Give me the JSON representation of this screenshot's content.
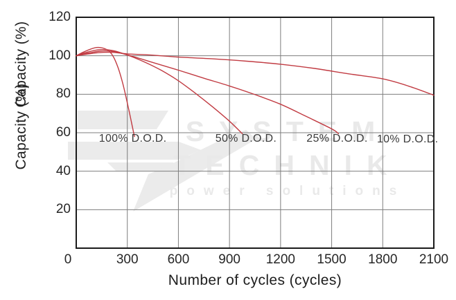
{
  "watermark": {
    "line1": "SYSTEM",
    "line2": "TECHNIK",
    "line3": "power solutions"
  },
  "axes": {
    "xlabel": "Number of cycles (cycles)",
    "ylabel": "Capacity (%)",
    "ylabel_echo": "Capacity (%)"
  },
  "chart_data": {
    "type": "line",
    "title": "",
    "xlabel": "Number of cycles (cycles)",
    "ylabel": "Capacity (%)",
    "xlim": [
      0,
      2100
    ],
    "ylim": [
      0,
      120
    ],
    "x_ticks": [
      0,
      300,
      600,
      900,
      1200,
      1500,
      1800,
      2100
    ],
    "y_ticks": [
      20,
      40,
      60,
      80,
      100,
      120
    ],
    "grid": true,
    "legend_position": "inline-labels",
    "line_color": "#c13b42",
    "series": [
      {
        "name": "100% D.O.D.",
        "label": "100% D.O.D.",
        "label_at": [
          332,
          56.8
        ],
        "points": [
          [
            0,
            100
          ],
          [
            50,
            102.2
          ],
          [
            120,
            104.3
          ],
          [
            180,
            103.2
          ],
          [
            215,
            100
          ],
          [
            245,
            94
          ],
          [
            275,
            85
          ],
          [
            305,
            73.5
          ],
          [
            330,
            63
          ],
          [
            342,
            58
          ]
        ]
      },
      {
        "name": "50% D.O.D.",
        "label": "50% D.O.D.",
        "label_at": [
          997,
          56.8
        ],
        "points": [
          [
            0,
            100
          ],
          [
            60,
            101.8
          ],
          [
            140,
            103.2
          ],
          [
            220,
            102.6
          ],
          [
            300,
            100.4
          ],
          [
            400,
            96.8
          ],
          [
            500,
            92.4
          ],
          [
            600,
            87
          ],
          [
            700,
            80.5
          ],
          [
            800,
            73.5
          ],
          [
            900,
            66
          ],
          [
            975,
            59.5
          ]
        ]
      },
      {
        "name": "25% D.O.D.",
        "label": "25% D.O.D.",
        "label_at": [
          1532,
          56.8
        ],
        "points": [
          [
            0,
            100
          ],
          [
            60,
            101.2
          ],
          [
            140,
            102.4
          ],
          [
            220,
            102.2
          ],
          [
            310,
            100.2
          ],
          [
            450,
            96.5
          ],
          [
            600,
            92.5
          ],
          [
            750,
            88.3
          ],
          [
            900,
            84.3
          ],
          [
            1050,
            79.8
          ],
          [
            1200,
            74.8
          ],
          [
            1350,
            68.5
          ],
          [
            1500,
            62
          ],
          [
            1540,
            59.5
          ]
        ]
      },
      {
        "name": "10% D.O.D.",
        "label": "10% D.O.D.",
        "label_at": [
          1946,
          56.5
        ],
        "points": [
          [
            0,
            100
          ],
          [
            60,
            100.8
          ],
          [
            130,
            101.6
          ],
          [
            210,
            101.8
          ],
          [
            300,
            101
          ],
          [
            450,
            100.3
          ],
          [
            600,
            99.3
          ],
          [
            800,
            98.4
          ],
          [
            1000,
            97.2
          ],
          [
            1200,
            95.6
          ],
          [
            1400,
            93.4
          ],
          [
            1600,
            90.6
          ],
          [
            1800,
            88
          ],
          [
            1950,
            84.3
          ],
          [
            2100,
            79.5
          ]
        ]
      }
    ]
  }
}
